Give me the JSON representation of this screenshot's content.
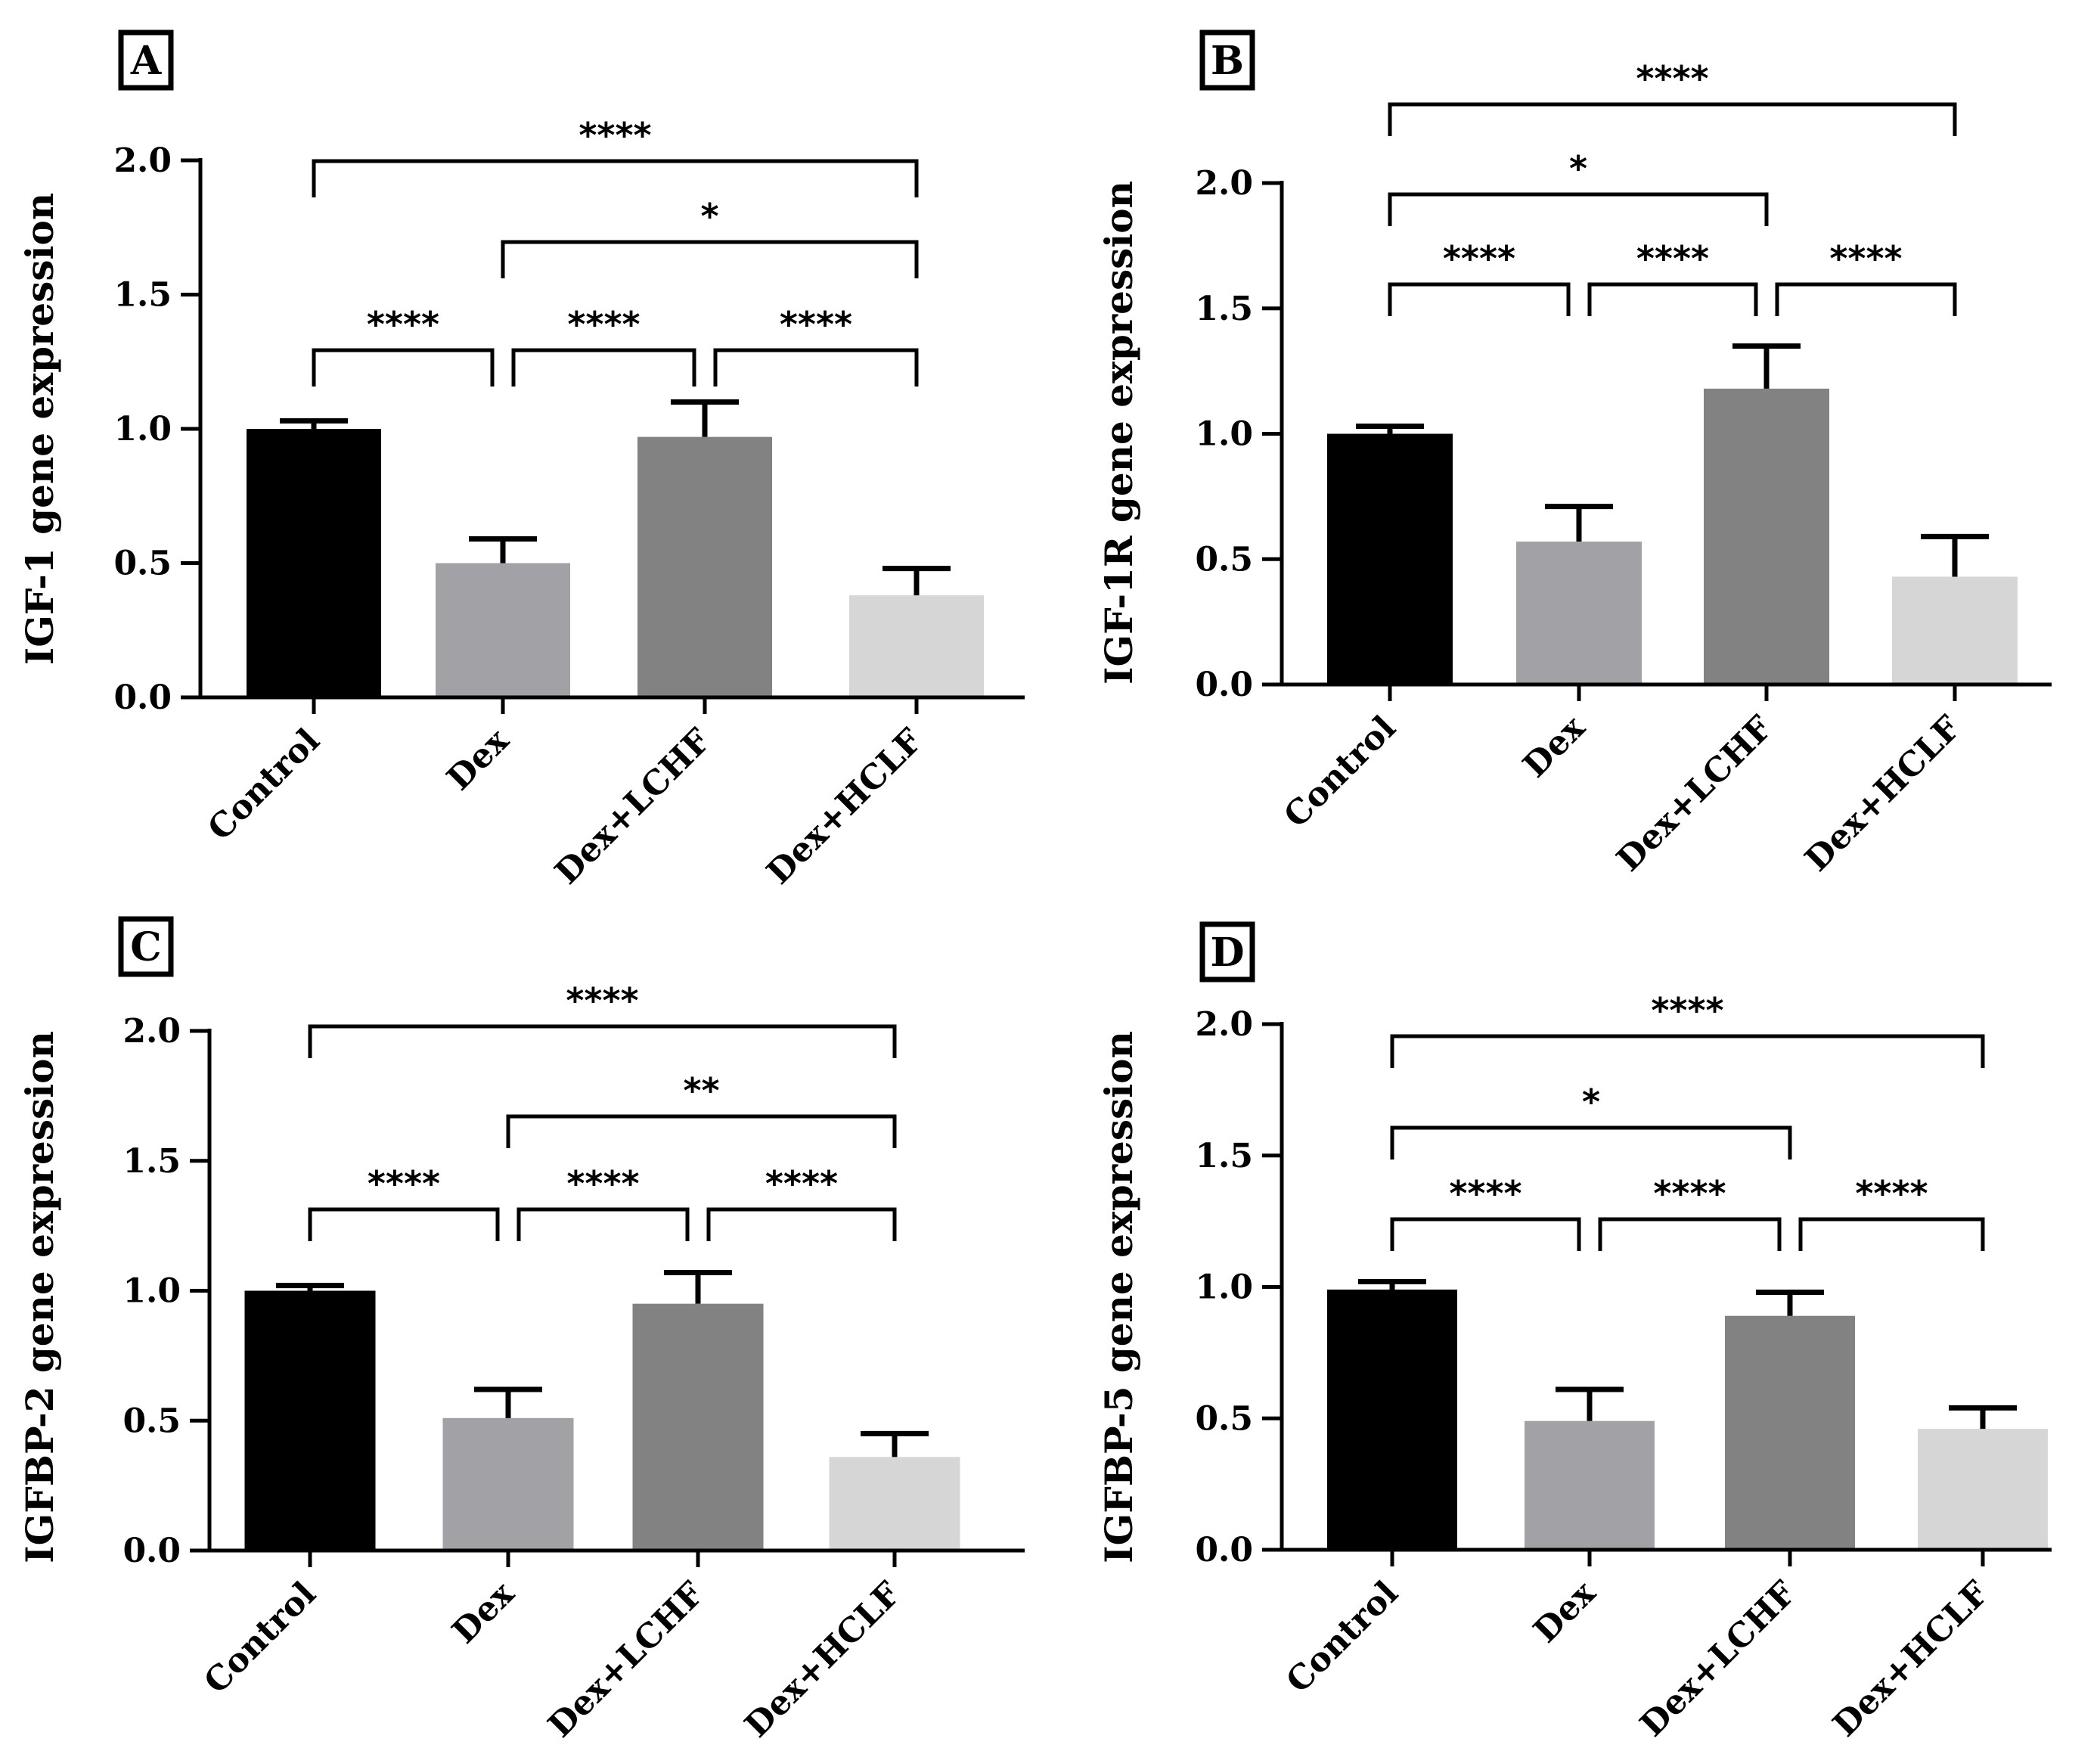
{
  "colors": {
    "Control": "#000000",
    "Dex": "#a1a1a6",
    "Dex+LCHF": "#828282",
    "Dex+HCLF": "#d6d6d6"
  },
  "chart_data": [
    {
      "panel": "A",
      "type": "bar",
      "categories": [
        "Control",
        "Dex",
        "Dex+LCHF",
        "Dex+HCLF"
      ],
      "values": [
        1.0,
        0.5,
        0.97,
        0.38
      ],
      "errors": [
        0.03,
        0.09,
        0.13,
        0.1
      ],
      "ylabel": "IGF-1 gene expression",
      "ylim": [
        0,
        2.0
      ],
      "yticks": [
        "0.0",
        "0.5",
        "1.0",
        "1.5",
        "2.0"
      ],
      "significance": [
        {
          "from": 0,
          "to": 1,
          "label": "****",
          "level": 0
        },
        {
          "from": 1,
          "to": 2,
          "label": "****",
          "level": 0
        },
        {
          "from": 2,
          "to": 3,
          "label": "****",
          "level": 0
        },
        {
          "from": 1,
          "to": 3,
          "label": "*",
          "level": 1
        },
        {
          "from": 0,
          "to": 3,
          "label": "****",
          "level": 2
        }
      ]
    },
    {
      "panel": "B",
      "type": "bar",
      "categories": [
        "Control",
        "Dex",
        "Dex+LCHF",
        "Dex+HCLF"
      ],
      "values": [
        1.0,
        0.57,
        1.18,
        0.43
      ],
      "errors": [
        0.03,
        0.14,
        0.17,
        0.16
      ],
      "ylabel": "IGF-1R gene expression",
      "ylim": [
        0,
        2.0
      ],
      "yticks": [
        "0.0",
        "0.5",
        "1.0",
        "1.5",
        "2.0"
      ],
      "significance": [
        {
          "from": 0,
          "to": 1,
          "label": "****",
          "level": 0
        },
        {
          "from": 1,
          "to": 2,
          "label": "****",
          "level": 0
        },
        {
          "from": 2,
          "to": 3,
          "label": "****",
          "level": 0
        },
        {
          "from": 0,
          "to": 2,
          "label": "*",
          "level": 1
        },
        {
          "from": 0,
          "to": 3,
          "label": "****",
          "level": 2
        }
      ]
    },
    {
      "panel": "C",
      "type": "bar",
      "categories": [
        "Control",
        "Dex",
        "Dex+LCHF",
        "Dex+HCLF"
      ],
      "values": [
        1.0,
        0.51,
        0.95,
        0.36
      ],
      "errors": [
        0.02,
        0.11,
        0.12,
        0.09
      ],
      "ylabel": "IGFBP-2 gene expression",
      "ylim": [
        0,
        2.0
      ],
      "yticks": [
        "0.0",
        "0.5",
        "1.0",
        "1.5",
        "2.0"
      ],
      "significance": [
        {
          "from": 0,
          "to": 1,
          "label": "****",
          "level": 0
        },
        {
          "from": 1,
          "to": 2,
          "label": "****",
          "level": 0
        },
        {
          "from": 2,
          "to": 3,
          "label": "****",
          "level": 0
        },
        {
          "from": 1,
          "to": 3,
          "label": "**",
          "level": 1
        },
        {
          "from": 0,
          "to": 3,
          "label": "****",
          "level": 2
        }
      ]
    },
    {
      "panel": "D",
      "type": "bar",
      "categories": [
        "Control",
        "Dex",
        "Dex+LCHF",
        "Dex+HCLF"
      ],
      "values": [
        0.99,
        0.49,
        0.89,
        0.46
      ],
      "errors": [
        0.03,
        0.12,
        0.09,
        0.08
      ],
      "ylabel": "IGFBP-5  gene expression",
      "ylim": [
        0,
        2.0
      ],
      "yticks": [
        "0.0",
        "0.5",
        "1.0",
        "1.5",
        "2.0"
      ],
      "significance": [
        {
          "from": 0,
          "to": 1,
          "label": "****",
          "level": 0
        },
        {
          "from": 1,
          "to": 2,
          "label": "****",
          "level": 0
        },
        {
          "from": 2,
          "to": 3,
          "label": "****",
          "level": 0
        },
        {
          "from": 0,
          "to": 2,
          "label": "*",
          "level": 1
        },
        {
          "from": 0,
          "to": 3,
          "label": "****",
          "level": 2
        }
      ]
    }
  ]
}
